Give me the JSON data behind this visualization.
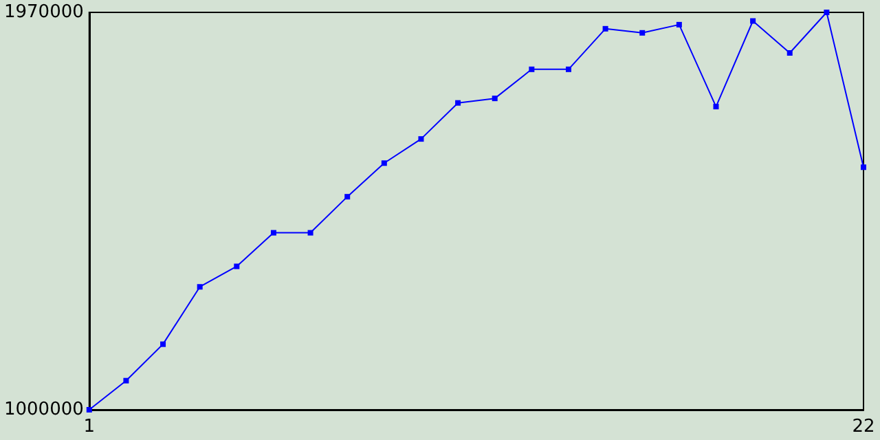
{
  "chart_data": {
    "type": "line",
    "x": [
      1,
      2,
      3,
      4,
      5,
      6,
      7,
      8,
      9,
      10,
      11,
      12,
      13,
      14,
      15,
      16,
      17,
      18,
      19,
      20,
      21,
      22
    ],
    "series": [
      {
        "color": "#0000ff",
        "values": [
          1000000,
          1071000,
          1160000,
          1300000,
          1350000,
          1432000,
          1432000,
          1520000,
          1602000,
          1661000,
          1749000,
          1760000,
          1831000,
          1831000,
          1930000,
          1920000,
          1940000,
          1740000,
          1949000,
          1871000,
          1970000,
          1592000
        ]
      }
    ],
    "xlim": [
      1,
      22
    ],
    "xticks": [
      1,
      22
    ],
    "ylim": [
      1000000,
      1970000
    ],
    "yticks": [
      1000000,
      1970000
    ],
    "grid": false,
    "marker": "square",
    "line_style": "solid"
  }
}
